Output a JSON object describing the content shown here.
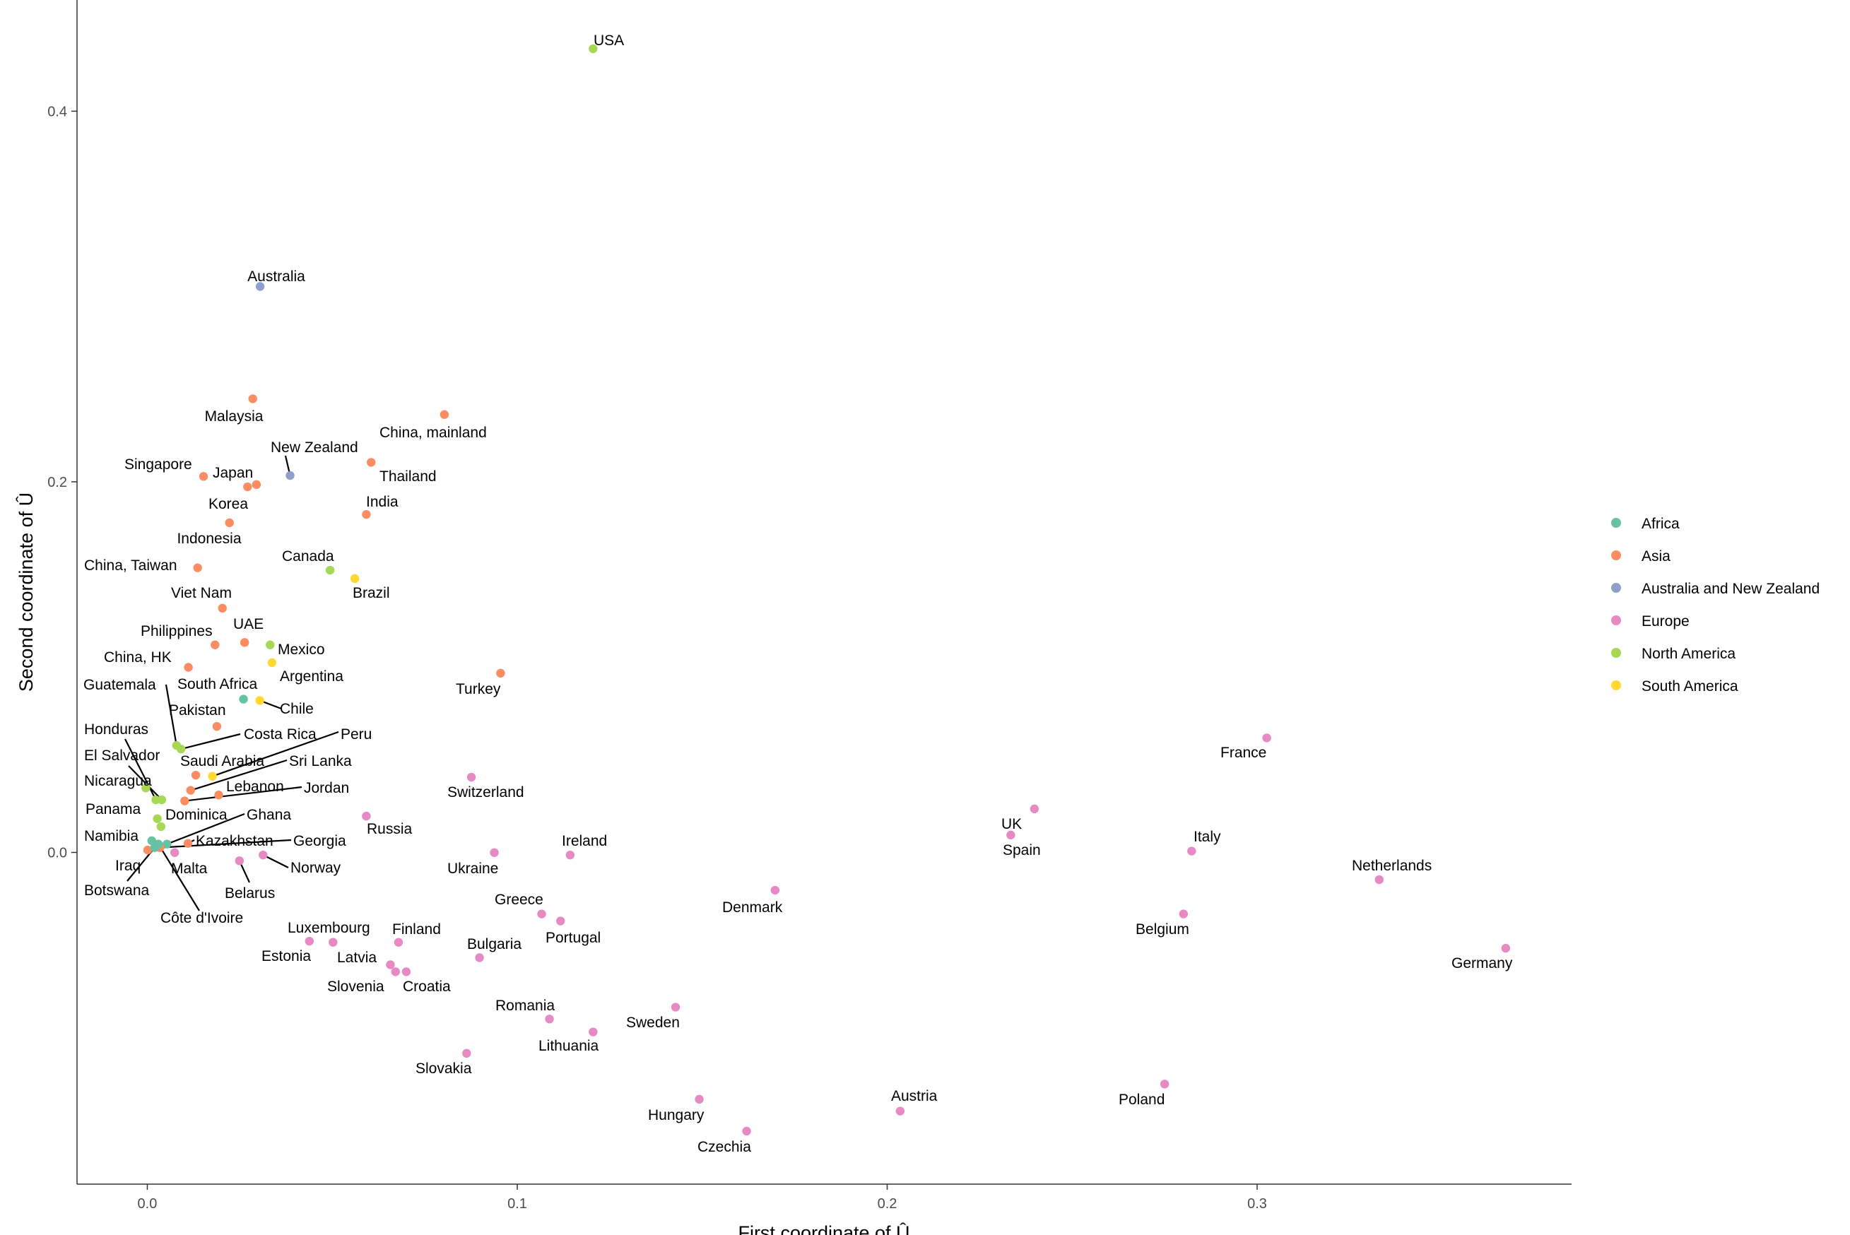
{
  "chart_data": {
    "type": "scatter",
    "xlabel": "First coordinate of Û",
    "ylabel": "Second coordinate of Û",
    "xlim": [
      -0.019,
      0.385
    ],
    "ylim": [
      -0.179,
      0.46
    ],
    "x_ticks": [
      {
        "value": 0.0,
        "label": "0.0"
      },
      {
        "value": 0.1,
        "label": "0.1"
      },
      {
        "value": 0.2,
        "label": "0.2"
      },
      {
        "value": 0.3,
        "label": "0.3"
      }
    ],
    "y_ticks": [
      {
        "value": 0.0,
        "label": "0.0"
      },
      {
        "value": 0.2,
        "label": "0.2"
      },
      {
        "value": 0.4,
        "label": "0.4"
      }
    ],
    "grid": false,
    "legend_position": "right",
    "legend": [
      {
        "name": "Africa",
        "color": "#66c2a5"
      },
      {
        "name": "Asia",
        "color": "#fc8d62"
      },
      {
        "name": "Australia and New Zealand",
        "color": "#8da0cb"
      },
      {
        "name": "Europe",
        "color": "#e78ac3"
      },
      {
        "name": "North America",
        "color": "#a6d854"
      },
      {
        "name": "South America",
        "color": "#ffd92f"
      }
    ],
    "points": [
      {
        "label": "USA",
        "group": "North America",
        "x": 0.1205,
        "y": 0.4337
      },
      {
        "label": "Australia",
        "group": "Australia and New Zealand",
        "x": 0.0305,
        "y": 0.3054
      },
      {
        "label": "Malaysia",
        "group": "Asia",
        "x": 0.0285,
        "y": 0.2448
      },
      {
        "label": "China, mainland",
        "group": "Asia",
        "x": 0.0803,
        "y": 0.2363
      },
      {
        "label": "New Zealand",
        "group": "Australia and New Zealand",
        "x": 0.0386,
        "y": 0.2034
      },
      {
        "label": "Thailand",
        "group": "Asia",
        "x": 0.0605,
        "y": 0.2105
      },
      {
        "label": "Singapore",
        "group": "Asia",
        "x": 0.0152,
        "y": 0.2029
      },
      {
        "label": "Japan",
        "group": "Asia",
        "x": 0.0295,
        "y": 0.1985
      },
      {
        "label": "Korea",
        "group": "Asia",
        "x": 0.0271,
        "y": 0.1973
      },
      {
        "label": "India",
        "group": "Asia",
        "x": 0.0592,
        "y": 0.1824
      },
      {
        "label": "Indonesia",
        "group": "Asia",
        "x": 0.0222,
        "y": 0.1779
      },
      {
        "label": "China, Taiwan",
        "group": "Asia",
        "x": 0.0136,
        "y": 0.1536
      },
      {
        "label": "Canada",
        "group": "North America",
        "x": 0.0494,
        "y": 0.1523
      },
      {
        "label": "Brazil",
        "group": "South America",
        "x": 0.0561,
        "y": 0.1478
      },
      {
        "label": "Viet Nam",
        "group": "Asia",
        "x": 0.0203,
        "y": 0.1318
      },
      {
        "label": "UAE",
        "group": "Asia",
        "x": 0.0263,
        "y": 0.1133
      },
      {
        "label": "Philippines",
        "group": "Asia",
        "x": 0.0183,
        "y": 0.112
      },
      {
        "label": "Mexico",
        "group": "North America",
        "x": 0.0332,
        "y": 0.112
      },
      {
        "label": "Argentina",
        "group": "South America",
        "x": 0.0337,
        "y": 0.1024
      },
      {
        "label": "China, HK",
        "group": "Asia",
        "x": 0.0111,
        "y": 0.0999
      },
      {
        "label": "Turkey",
        "group": "Asia",
        "x": 0.0955,
        "y": 0.0967
      },
      {
        "label": "South Africa",
        "group": "Africa",
        "x": 0.026,
        "y": 0.0827
      },
      {
        "label": "Chile",
        "group": "South America",
        "x": 0.0304,
        "y": 0.082
      },
      {
        "label": "Pakistan",
        "group": "Asia",
        "x": 0.0188,
        "y": 0.068
      },
      {
        "label": "Guatemala",
        "group": "North America",
        "x": 0.0079,
        "y": 0.0577
      },
      {
        "label": "Costa Rica",
        "group": "North America",
        "x": 0.0091,
        "y": 0.0558
      },
      {
        "label": "Peru",
        "group": "South America",
        "x": 0.0176,
        "y": 0.0411
      },
      {
        "label": "Saudi Arabia",
        "group": "Asia",
        "x": 0.0131,
        "y": 0.0417
      },
      {
        "label": "Sri Lanka",
        "group": "Asia",
        "x": 0.0117,
        "y": 0.0335
      },
      {
        "label": "Lebanon",
        "group": "Asia",
        "x": 0.0193,
        "y": 0.031
      },
      {
        "label": "Jordan",
        "group": "Asia",
        "x": 0.0101,
        "y": 0.0278
      },
      {
        "label": "Honduras",
        "group": "North America",
        "x": 0.0023,
        "y": 0.0284
      },
      {
        "label": "El Salvador",
        "group": "North America",
        "x": 0.0039,
        "y": 0.0284
      },
      {
        "label": "Nicaragua",
        "group": "North America",
        "x": -0.0004,
        "y": 0.0348
      },
      {
        "label": "Panama",
        "group": "North America",
        "x": 0.0027,
        "y": 0.0182
      },
      {
        "label": "Dominica",
        "group": "North America",
        "x": 0.0037,
        "y": 0.0139
      },
      {
        "label": "Ghana",
        "group": "Africa",
        "x": 0.0053,
        "y": 0.0045
      },
      {
        "label": "Kazakhstan",
        "group": "Asia",
        "x": 0.011,
        "y": 0.0049
      },
      {
        "label": "Georgia",
        "group": "Asia",
        "x": 0.0034,
        "y": 0.0026
      },
      {
        "label": "Namibia",
        "group": "Africa",
        "x": 0.0012,
        "y": 0.0063
      },
      {
        "label": "Iraq",
        "group": "Asia",
        "x": 0.0001,
        "y": 0.0013
      },
      {
        "label": "Botswana",
        "group": "Africa",
        "x": 0.002,
        "y": 0.0026
      },
      {
        "label": "Côte d'Ivoire",
        "group": "Africa",
        "x": 0.003,
        "y": 0.0045
      },
      {
        "label": "Malta",
        "group": "Europe",
        "x": 0.0074,
        "y": -0.0001
      },
      {
        "label": "Belarus",
        "group": "Europe",
        "x": 0.0249,
        "y": -0.0045
      },
      {
        "label": "Norway",
        "group": "Europe",
        "x": 0.0313,
        "y": -0.0014
      },
      {
        "label": "Russia",
        "group": "Europe",
        "x": 0.0592,
        "y": 0.0196
      },
      {
        "label": "Switzerland",
        "group": "Europe",
        "x": 0.0876,
        "y": 0.0406
      },
      {
        "label": "Ukraine",
        "group": "Europe",
        "x": 0.0938,
        "y": -0.0001
      },
      {
        "label": "Ireland",
        "group": "Europe",
        "x": 0.1143,
        "y": -0.0014
      },
      {
        "label": "Greece",
        "group": "Europe",
        "x": 0.1066,
        "y": -0.0332
      },
      {
        "label": "Portugal",
        "group": "Europe",
        "x": 0.1117,
        "y": -0.037
      },
      {
        "label": "Bulgaria",
        "group": "Europe",
        "x": 0.0898,
        "y": -0.0568
      },
      {
        "label": "Luxembourg",
        "group": "Europe",
        "x": 0.0438,
        "y": -0.0479
      },
      {
        "label": "Estonia",
        "group": "Europe",
        "x": 0.0502,
        "y": -0.0485
      },
      {
        "label": "Finland",
        "group": "Europe",
        "x": 0.0679,
        "y": -0.0485
      },
      {
        "label": "Latvia",
        "group": "Europe",
        "x": 0.0657,
        "y": -0.0606
      },
      {
        "label": "Slovenia",
        "group": "Europe",
        "x": 0.0671,
        "y": -0.0644
      },
      {
        "label": "Croatia",
        "group": "Europe",
        "x": 0.07,
        "y": -0.0644
      },
      {
        "label": "Romania",
        "group": "Europe",
        "x": 0.1087,
        "y": -0.0899
      },
      {
        "label": "Lithuania",
        "group": "Europe",
        "x": 0.1205,
        "y": -0.0969
      },
      {
        "label": "Slovakia",
        "group": "Europe",
        "x": 0.0863,
        "y": -0.1084
      },
      {
        "label": "Sweden",
        "group": "Europe",
        "x": 0.1428,
        "y": -0.0835
      },
      {
        "label": "Hungary",
        "group": "Europe",
        "x": 0.1492,
        "y": -0.1332
      },
      {
        "label": "Czechia",
        "group": "Europe",
        "x": 0.162,
        "y": -0.1504
      },
      {
        "label": "Denmark",
        "group": "Europe",
        "x": 0.1697,
        "y": -0.0204
      },
      {
        "label": "Austria",
        "group": "Europe",
        "x": 0.2035,
        "y": -0.1396
      },
      {
        "label": "UK",
        "group": "Europe",
        "x": 0.2398,
        "y": 0.0235
      },
      {
        "label": "Spain",
        "group": "Europe",
        "x": 0.2334,
        "y": 0.0094
      },
      {
        "label": "France",
        "group": "Europe",
        "x": 0.3026,
        "y": 0.0618
      },
      {
        "label": "Italy",
        "group": "Europe",
        "x": 0.2823,
        "y": 0.0007
      },
      {
        "label": "Belgium",
        "group": "Europe",
        "x": 0.2801,
        "y": -0.0332
      },
      {
        "label": "Netherlands",
        "group": "Europe",
        "x": 0.333,
        "y": -0.0147
      },
      {
        "label": "Germany",
        "group": "Europe",
        "x": 0.3672,
        "y": -0.0517
      },
      {
        "label": "Poland",
        "group": "Europe",
        "x": 0.275,
        "y": -0.125
      }
    ]
  }
}
